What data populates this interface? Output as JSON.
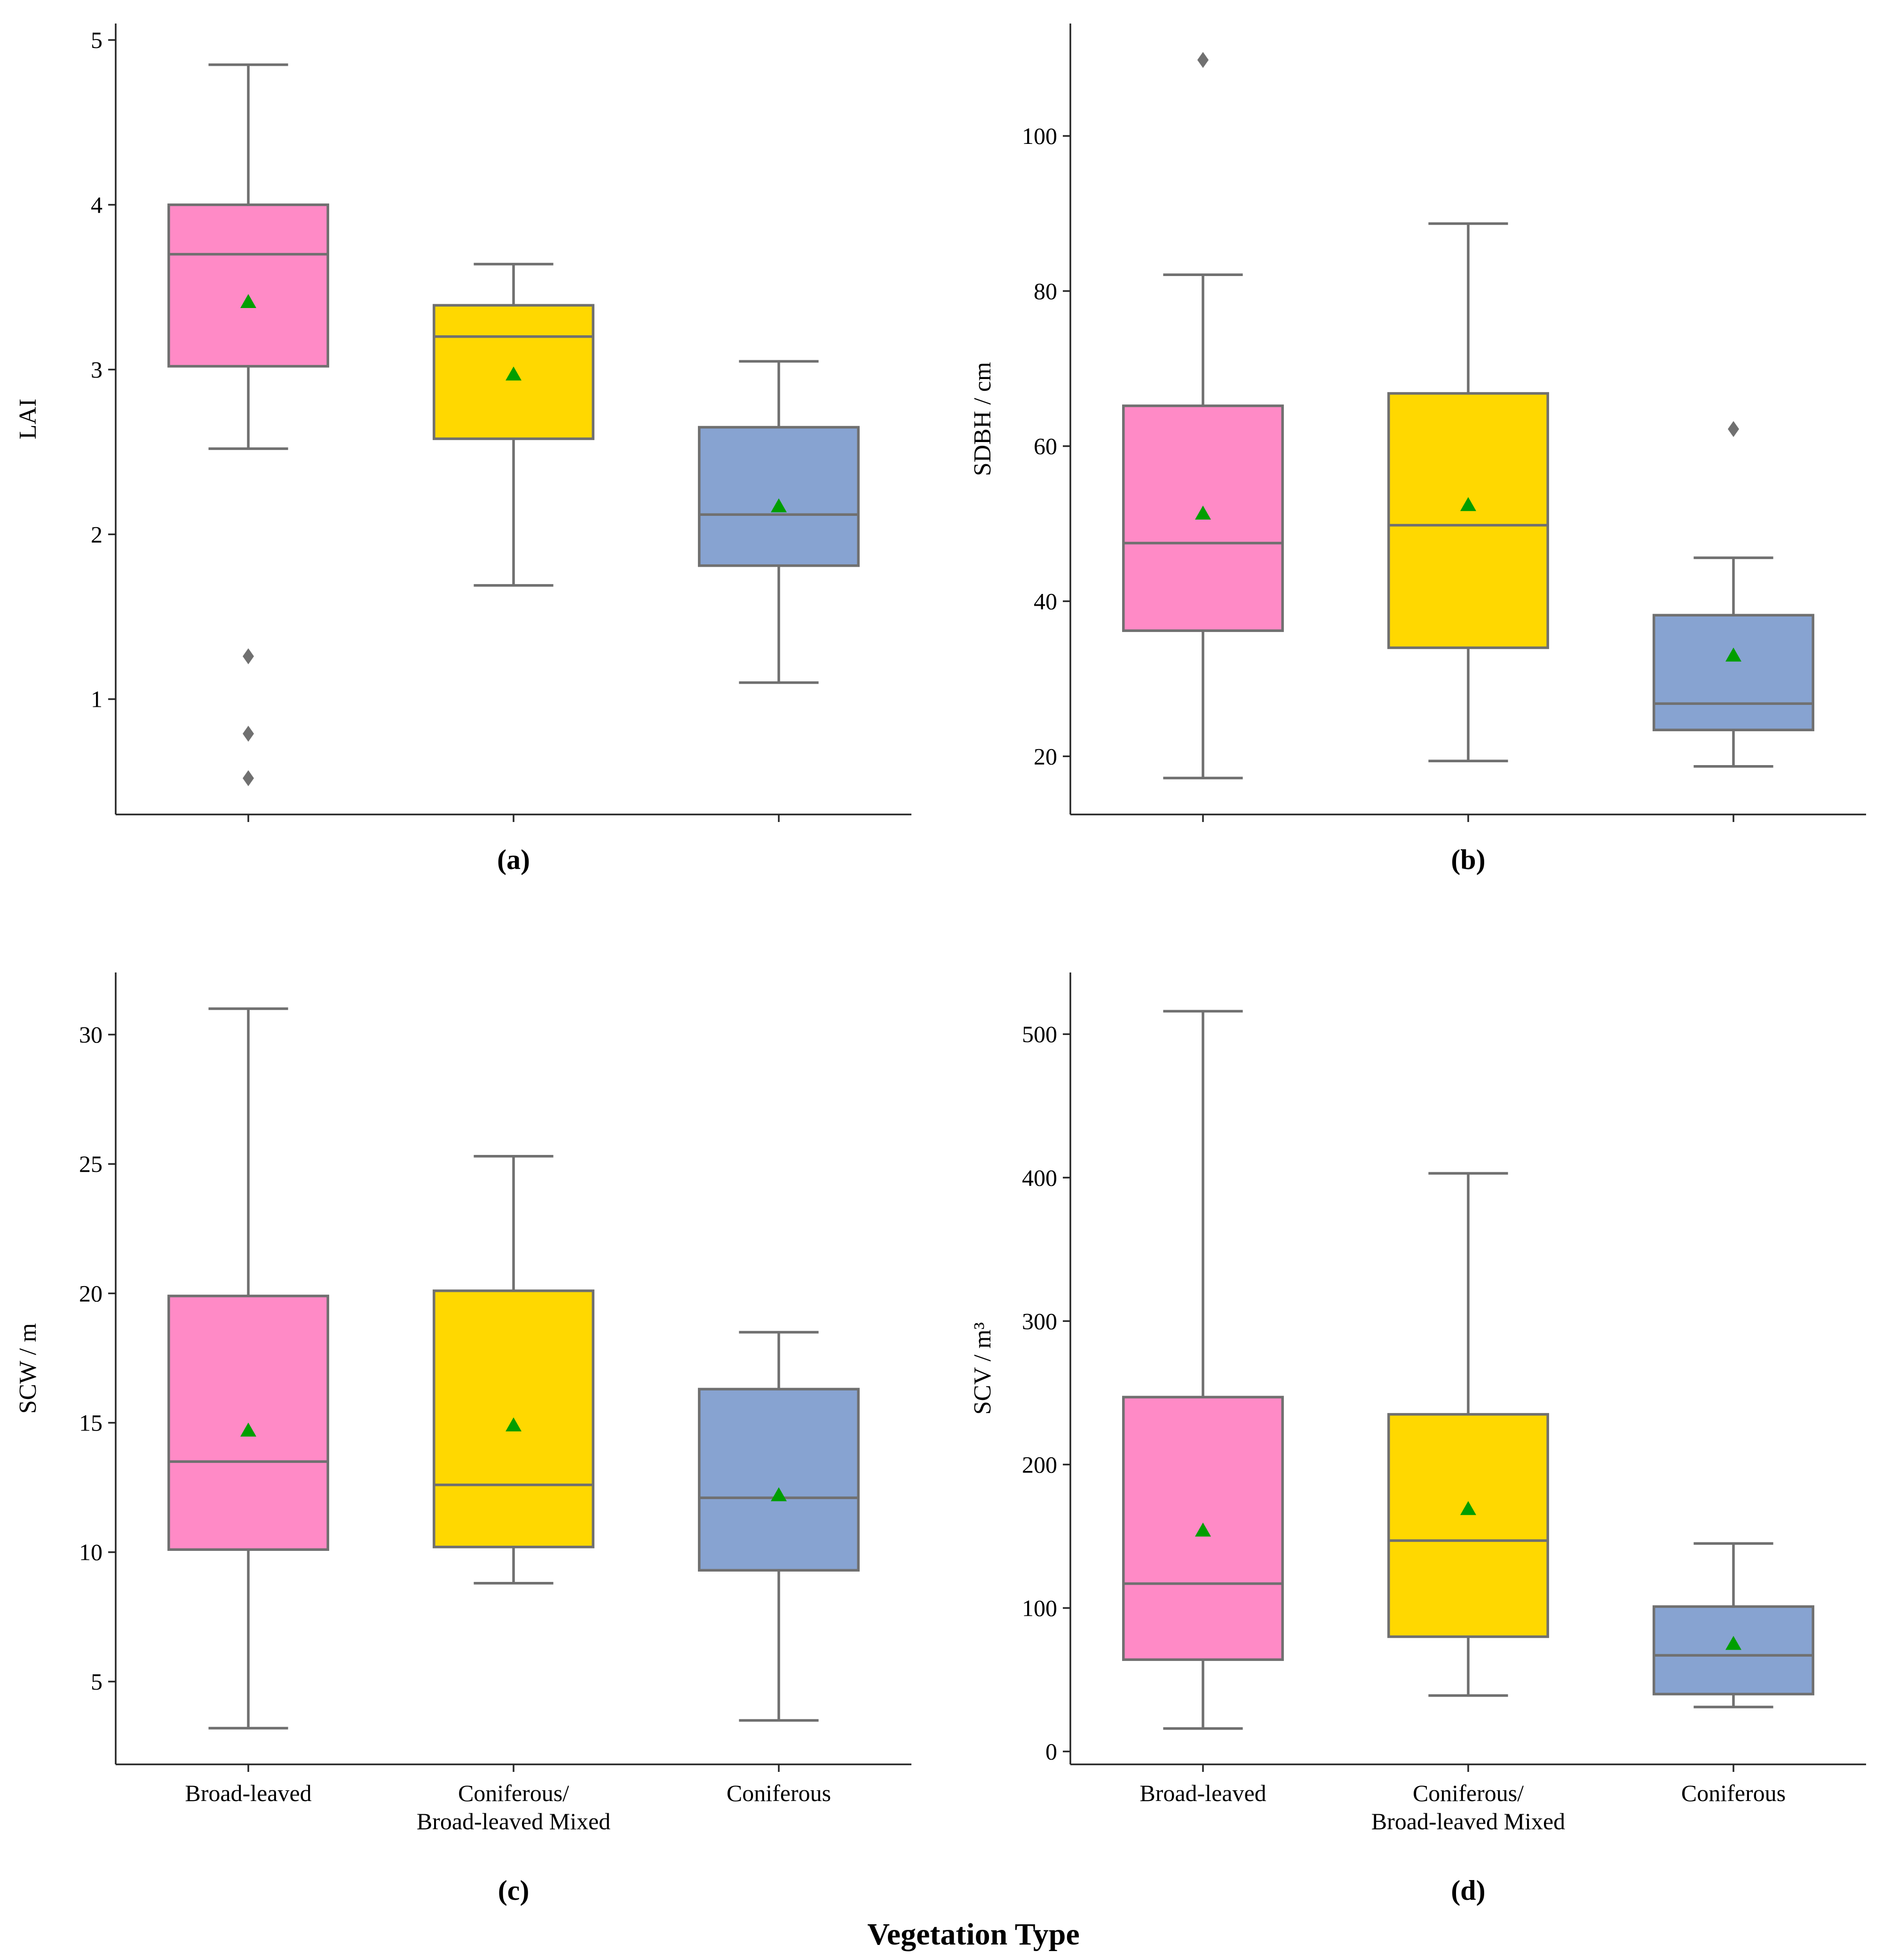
{
  "figure": {
    "xlabel": "Vegetation Type",
    "palette": {
      "box_edge": "#707070",
      "mean_marker": "#009e00",
      "axis": "#262626"
    }
  },
  "chart_data": [
    {
      "type": "box",
      "panel_label": "(a)",
      "ylabel": "LAI",
      "ylim": [
        0.3,
        5.1
      ],
      "yticks": [
        1,
        2,
        3,
        4,
        5
      ],
      "categories": [
        "Broad-leaved",
        "Coniferous/ Broad-leaved Mixed",
        "Coniferous"
      ],
      "show_category_labels": false,
      "colors": [
        "#ff8ac6",
        "#ffd800",
        "#87a3d1"
      ],
      "boxes": [
        {
          "whisker_low": 2.52,
          "q1": 3.02,
          "median": 3.7,
          "q3": 4.0,
          "whisker_high": 4.85,
          "mean": 3.41,
          "outliers": [
            1.26,
            0.79,
            0.52
          ]
        },
        {
          "whisker_low": 1.69,
          "q1": 2.58,
          "median": 3.2,
          "q3": 3.39,
          "whisker_high": 3.64,
          "mean": 2.97,
          "outliers": []
        },
        {
          "whisker_low": 1.1,
          "q1": 1.81,
          "median": 2.12,
          "q3": 2.65,
          "whisker_high": 3.05,
          "mean": 2.17,
          "outliers": []
        }
      ]
    },
    {
      "type": "box",
      "panel_label": "(b)",
      "ylabel": "SDBH / cm",
      "ylim": [
        12.5,
        114.5
      ],
      "yticks": [
        20,
        40,
        60,
        80,
        100
      ],
      "categories": [
        "Broad-leaved",
        "Coniferous/ Broad-leaved Mixed",
        "Coniferous"
      ],
      "show_category_labels": false,
      "colors": [
        "#ff8ac6",
        "#ffd800",
        "#87a3d1"
      ],
      "boxes": [
        {
          "whisker_low": 17.2,
          "q1": 36.2,
          "median": 47.5,
          "q3": 65.2,
          "whisker_high": 82.1,
          "mean": 51.3,
          "outliers": [
            109.8
          ]
        },
        {
          "whisker_low": 19.4,
          "q1": 34.0,
          "median": 49.8,
          "q3": 66.8,
          "whisker_high": 88.7,
          "mean": 52.4,
          "outliers": []
        },
        {
          "whisker_low": 18.7,
          "q1": 23.4,
          "median": 26.8,
          "q3": 38.2,
          "whisker_high": 45.6,
          "mean": 33.0,
          "outliers": [
            62.2
          ]
        }
      ]
    },
    {
      "type": "box",
      "panel_label": "(c)",
      "ylabel": "SCW / m",
      "ylim": [
        1.8,
        32.4
      ],
      "yticks": [
        5,
        10,
        15,
        20,
        25,
        30
      ],
      "categories": [
        "Broad-leaved",
        "Coniferous/ Broad-leaved Mixed",
        "Coniferous"
      ],
      "category_lines": [
        [
          "Broad-leaved"
        ],
        [
          "Coniferous/",
          "Broad-leaved Mixed"
        ],
        [
          "Coniferous"
        ]
      ],
      "show_category_labels": true,
      "colors": [
        "#ff8ac6",
        "#ffd800",
        "#87a3d1"
      ],
      "boxes": [
        {
          "whisker_low": 3.2,
          "q1": 10.1,
          "median": 13.5,
          "q3": 19.9,
          "whisker_high": 31.0,
          "mean": 14.7,
          "outliers": []
        },
        {
          "whisker_low": 8.8,
          "q1": 10.2,
          "median": 12.6,
          "q3": 20.1,
          "whisker_high": 25.3,
          "mean": 14.9,
          "outliers": []
        },
        {
          "whisker_low": 3.5,
          "q1": 9.3,
          "median": 12.1,
          "q3": 16.3,
          "whisker_high": 18.5,
          "mean": 12.2,
          "outliers": []
        }
      ]
    },
    {
      "type": "box",
      "panel_label": "(d)",
      "ylabel": "SCV / m³",
      "ylim": [
        -9,
        543
      ],
      "yticks": [
        0,
        100,
        200,
        300,
        400,
        500
      ],
      "categories": [
        "Broad-leaved",
        "Coniferous/ Broad-leaved Mixed",
        "Coniferous"
      ],
      "category_lines": [
        [
          "Broad-leaved"
        ],
        [
          "Coniferous/",
          "Broad-leaved Mixed"
        ],
        [
          "Coniferous"
        ]
      ],
      "show_category_labels": true,
      "colors": [
        "#ff8ac6",
        "#ffd800",
        "#87a3d1"
      ],
      "boxes": [
        {
          "whisker_low": 16,
          "q1": 64,
          "median": 117,
          "q3": 247,
          "whisker_high": 516,
          "mean": 154,
          "outliers": []
        },
        {
          "whisker_low": 39,
          "q1": 80,
          "median": 147,
          "q3": 235,
          "whisker_high": 403,
          "mean": 169,
          "outliers": []
        },
        {
          "whisker_low": 31,
          "q1": 40,
          "median": 67,
          "q3": 101,
          "whisker_high": 145,
          "mean": 75,
          "outliers": []
        }
      ]
    }
  ]
}
